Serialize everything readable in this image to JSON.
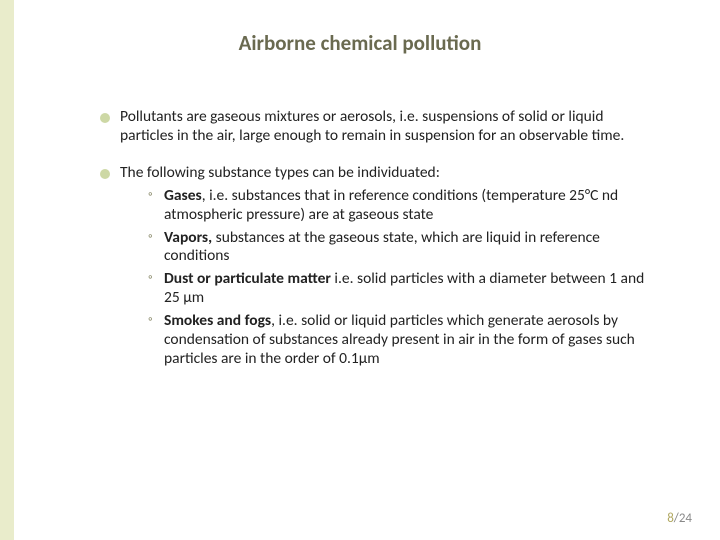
{
  "colors": {
    "stripe": "#e9eccb",
    "title": "#6a6a50",
    "bullet": "#cdd8a5",
    "submark": "#8a8a6a",
    "pagenum_current": "#b0a760",
    "pagenum_total": "#888888",
    "text": "#222222",
    "background": "#ffffff"
  },
  "title": "Airborne chemical pollution",
  "bullets": [
    {
      "text": "Pollutants are gaseous mixtures or aerosols, i.e. suspensions of solid or liquid particles in the air, large enough to remain in suspension for an observable time."
    },
    {
      "text": "The following substance types can be individuated:",
      "sub": [
        {
          "bold": "Gases",
          "rest": ", i.e. substances that in reference conditions (temperature 25°C nd atmospheric pressure) are at gaseous state"
        },
        {
          "bold": "Vapors,",
          "rest": " substances at the gaseous state, which are liquid in reference conditions"
        },
        {
          "bold": "Dust or particulate matter",
          "rest": " i.e. solid particles with a diameter between 1 and 25 μm"
        },
        {
          "bold": "Smokes and fogs",
          "rest": ", i.e. solid or liquid particles which generate aerosols by condensation of substances already present in air in the form of gases such particles are in the order of 0.1μm"
        }
      ]
    }
  ],
  "page": {
    "current": "8",
    "total": "/24"
  }
}
